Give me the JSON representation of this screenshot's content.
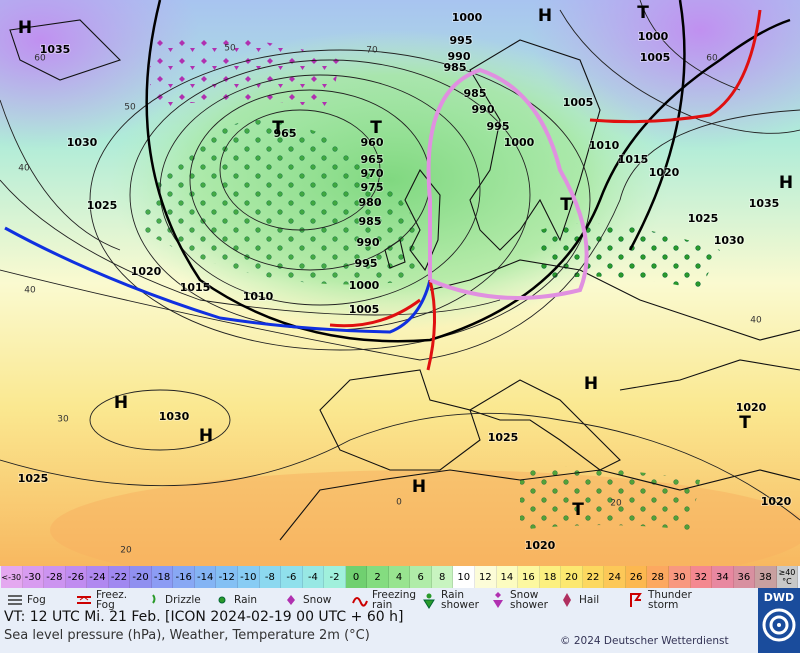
{
  "map": {
    "pressure_labels": [
      "1000",
      "995",
      "990",
      "985",
      "985",
      "990",
      "995",
      "1000",
      "1005",
      "1010",
      "1015",
      "1020",
      "1025",
      "1030",
      "1035",
      "1000",
      "1005",
      "1035",
      "1030",
      "1025",
      "1020",
      "1015",
      "1010",
      "1005",
      "1000",
      "995",
      "990",
      "985",
      "980",
      "975",
      "970",
      "965",
      "960",
      "965",
      "1030",
      "1025",
      "1025",
      "1020",
      "1020",
      "1020"
    ],
    "centers": [
      "H",
      "H",
      "T",
      "T",
      "T",
      "H",
      "T",
      "H",
      "H",
      "H",
      "H",
      "T",
      "T"
    ],
    "temperature_labels": [
      "60",
      "50",
      "40",
      "40",
      "30",
      "20",
      "60",
      "40",
      "20",
      "0",
      "70",
      "50"
    ]
  },
  "scale": [
    {
      "label": "<-30",
      "color": "#e4a8f0"
    },
    {
      "label": "-30",
      "color": "#d89cf0"
    },
    {
      "label": "-28",
      "color": "#cc94f0"
    },
    {
      "label": "-26",
      "color": "#c08cf0"
    },
    {
      "label": "-24",
      "color": "#b088f0"
    },
    {
      "label": "-22",
      "color": "#a088f0"
    },
    {
      "label": "-20",
      "color": "#9090f0"
    },
    {
      "label": "-18",
      "color": "#8c9cf4"
    },
    {
      "label": "-16",
      "color": "#88a8f4"
    },
    {
      "label": "-14",
      "color": "#84b4f4"
    },
    {
      "label": "-12",
      "color": "#84c0f4"
    },
    {
      "label": "-10",
      "color": "#88ccf4"
    },
    {
      "label": "-8",
      "color": "#8cd8f0"
    },
    {
      "label": "-6",
      "color": "#90e0ec"
    },
    {
      "label": "-4",
      "color": "#98e8e4"
    },
    {
      "label": "-2",
      "color": "#a0f0dc"
    },
    {
      "label": "0",
      "color": "#70d070"
    },
    {
      "label": "2",
      "color": "#84dc80"
    },
    {
      "label": "4",
      "color": "#98e490"
    },
    {
      "label": "6",
      "color": "#b0eca8"
    },
    {
      "label": "8",
      "color": "#c8f4c0"
    },
    {
      "label": "10",
      "color": "#ffffff"
    },
    {
      "label": "12",
      "color": "#fcfcd8"
    },
    {
      "label": "14",
      "color": "#fcfcc0"
    },
    {
      "label": "16",
      "color": "#fcf8a0"
    },
    {
      "label": "18",
      "color": "#fcf080"
    },
    {
      "label": "20",
      "color": "#fce870"
    },
    {
      "label": "22",
      "color": "#fcd860"
    },
    {
      "label": "24",
      "color": "#fcc858"
    },
    {
      "label": "26",
      "color": "#fcb850"
    },
    {
      "label": "28",
      "color": "#fca860"
    },
    {
      "label": "30",
      "color": "#f89880"
    },
    {
      "label": "32",
      "color": "#f48890"
    },
    {
      "label": "34",
      "color": "#e888a0"
    },
    {
      "label": "36",
      "color": "#d890a0"
    },
    {
      "label": "38",
      "color": "#c8a0a0"
    },
    {
      "label": "≥40 °C",
      "color": "#c8c8c8"
    }
  ],
  "legend": [
    "Fog",
    "Freez. Fog",
    "Drizzle",
    "Rain",
    "Snow",
    "Freezing rain",
    "Rain shower",
    "Snow shower",
    "Hail",
    "Thunder storm"
  ],
  "footer": {
    "valid_time": "VT: 12 UTC Mi.  21 Feb. [ICON 2024-02-19  00 UTC + 60 h]",
    "description": "Sea level pressure (hPa), Weather, Temperature 2m (°C)",
    "copyright": "© 2024 Deutscher Wetterdienst",
    "logo": "DWD"
  }
}
